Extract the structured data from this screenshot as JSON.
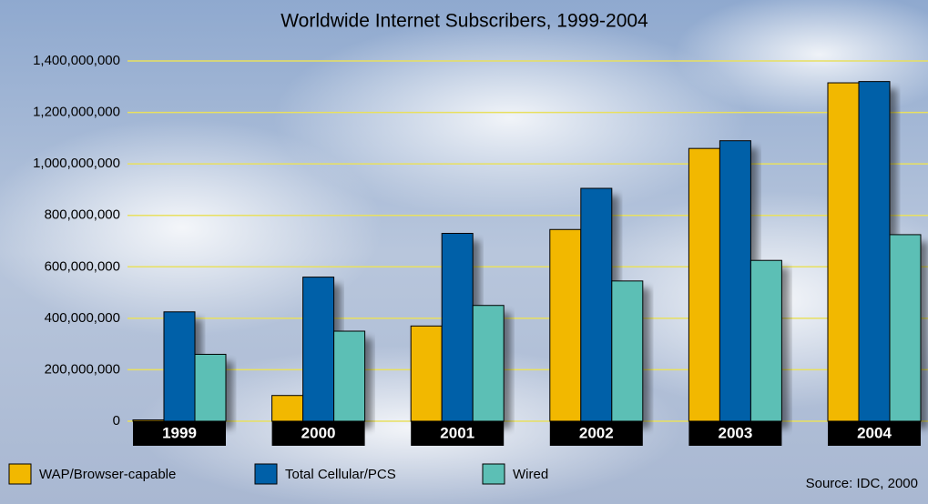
{
  "chart_data": {
    "type": "bar",
    "title": "Worldwide Internet Subscribers, 1999-2004",
    "source": "Source: IDC, 2000",
    "categories": [
      "1999",
      "2000",
      "2001",
      "2002",
      "2003",
      "2004"
    ],
    "series": [
      {
        "name": "WAP/Browser-capable",
        "color": "#f2b800",
        "values": [
          5000000,
          100000000,
          370000000,
          745000000,
          1060000000,
          1315000000
        ]
      },
      {
        "name": "Total Cellular/PCS",
        "color": "#0060a8",
        "values": [
          425000000,
          560000000,
          730000000,
          905000000,
          1090000000,
          1320000000
        ]
      },
      {
        "name": "Wired",
        "color": "#5cbfb5",
        "values": [
          260000000,
          350000000,
          450000000,
          545000000,
          625000000,
          725000000
        ]
      }
    ],
    "ylim": [
      0,
      1400000000
    ],
    "yticks": [
      0,
      {
        "value": 200000000,
        "label": "200,000,000"
      },
      {
        "value": 400000000,
        "label": "400,000,000"
      },
      {
        "value": 600000000,
        "label": "600,000,000"
      },
      {
        "value": 800000000,
        "label": "800,000,000"
      },
      {
        "value": 1000000000,
        "label": "1,000,000,000"
      },
      {
        "value": 1200000000,
        "label": "1,200,000,000"
      },
      {
        "value": 1400000000,
        "label": "1,400,000,000"
      }
    ],
    "grid": true
  }
}
